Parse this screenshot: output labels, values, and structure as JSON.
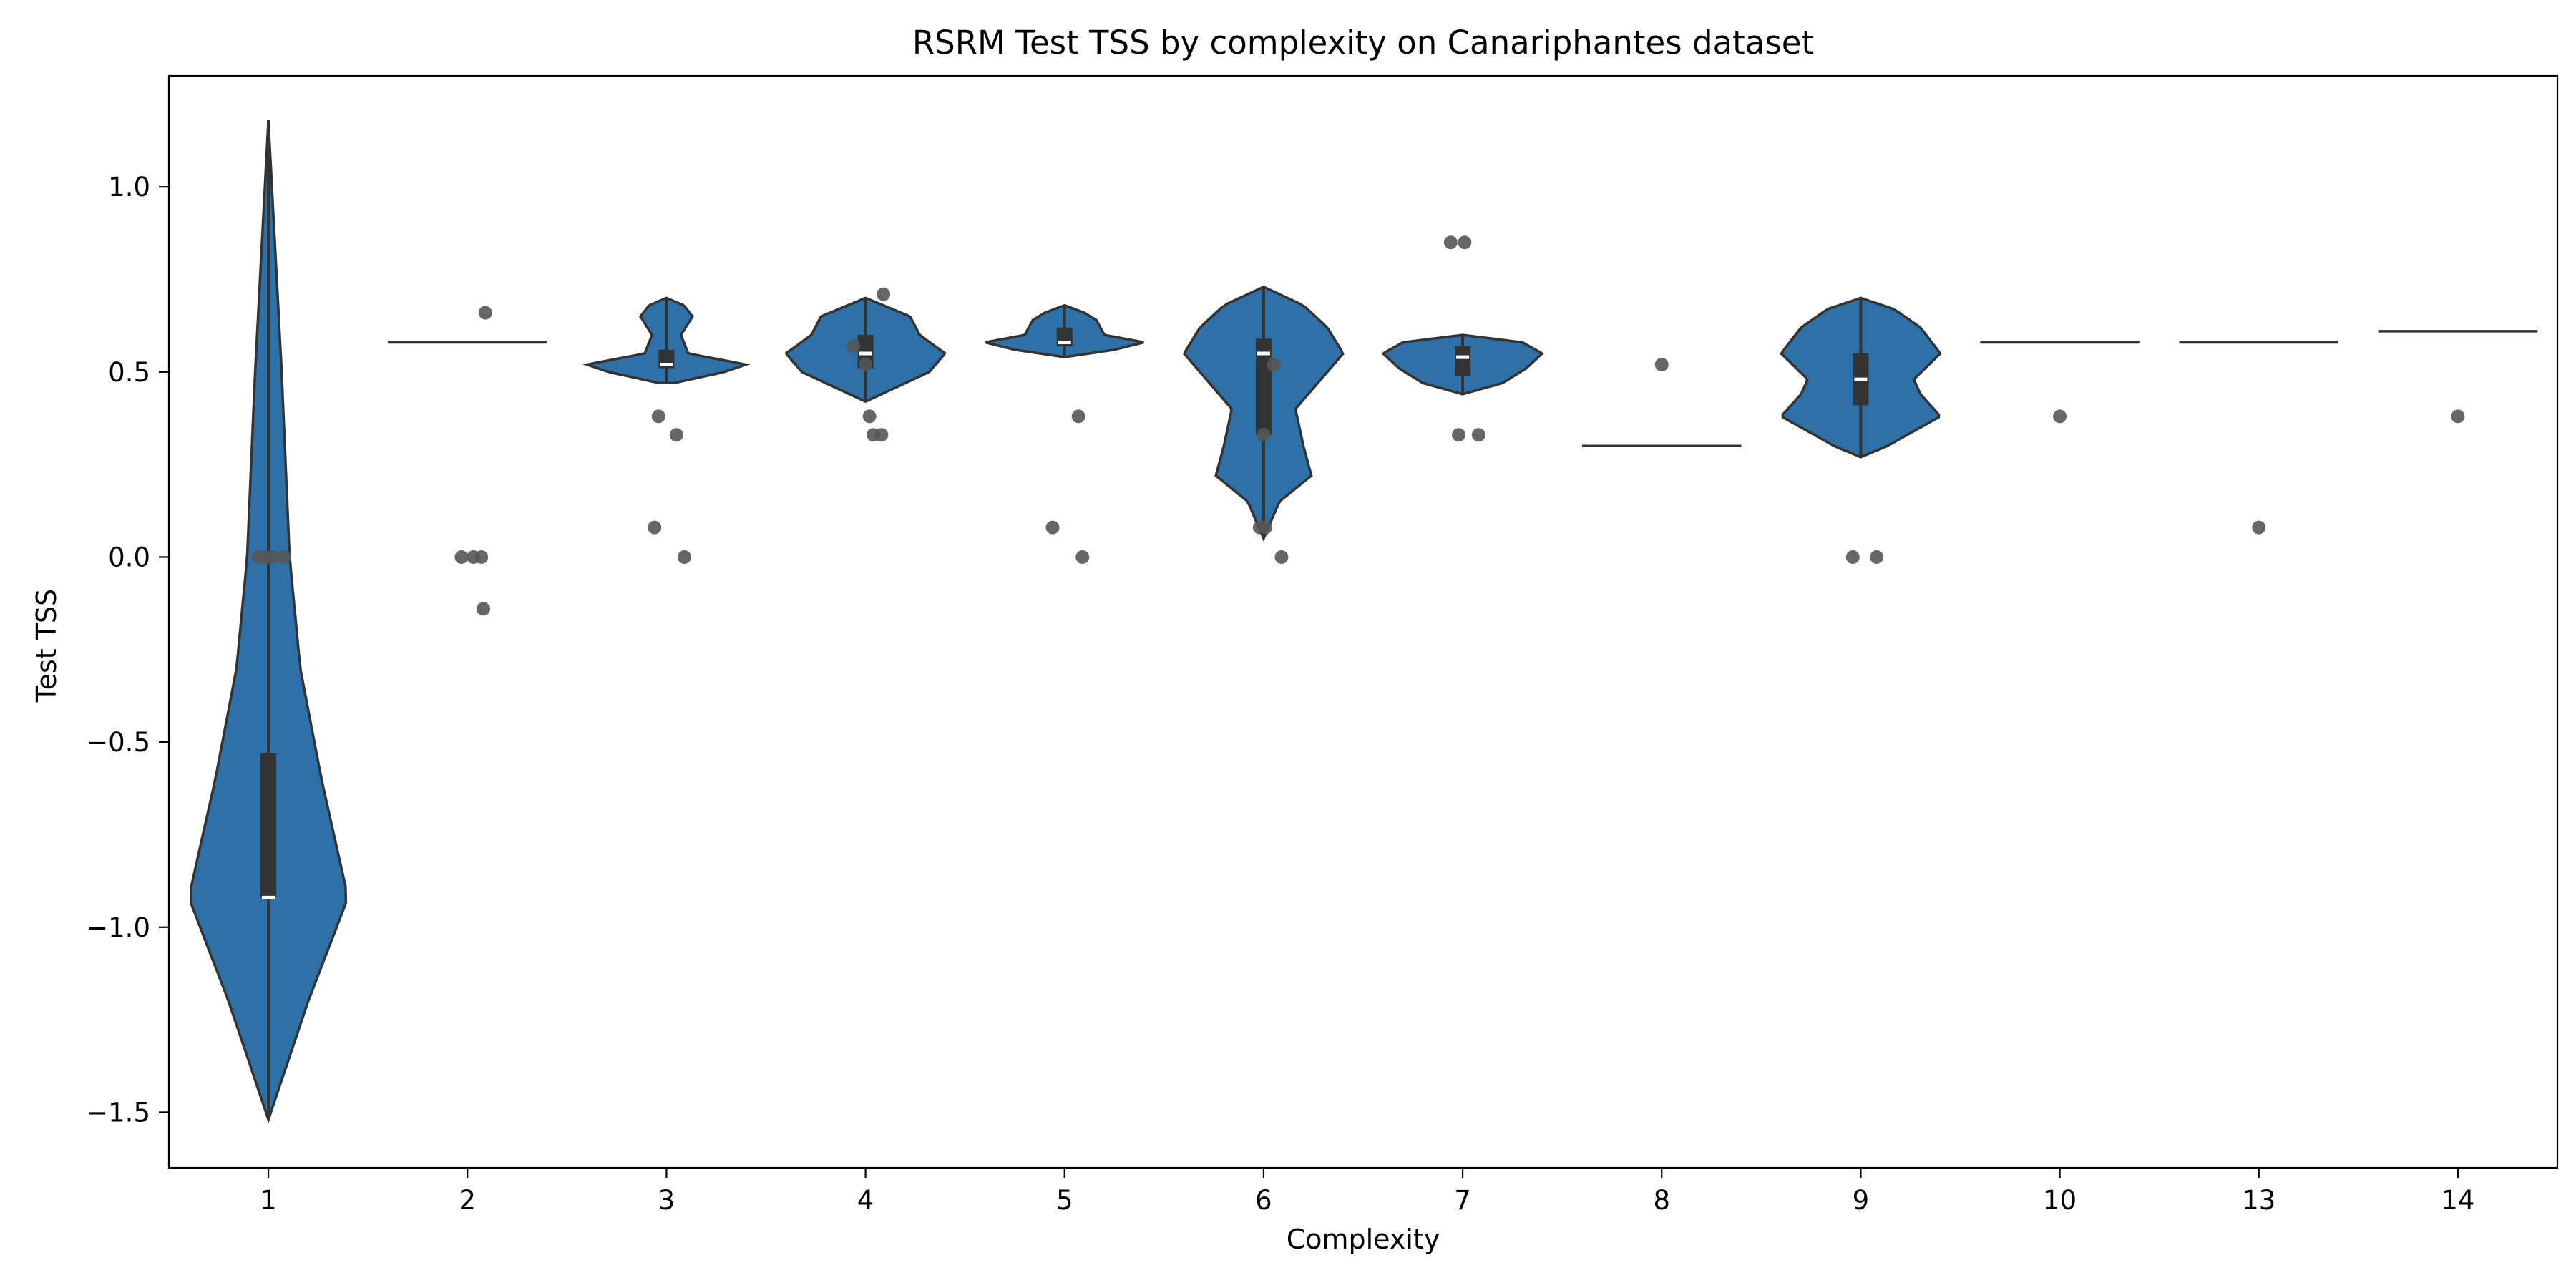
{
  "chart_data": {
    "type": "violin",
    "title": "RSRM Test TSS by complexity on Canariphantes dataset",
    "xlabel": "Complexity",
    "ylabel": "Test TSS",
    "ylim": [
      -1.65,
      1.3
    ],
    "yticks": [
      1.0,
      0.5,
      0.0,
      -0.5,
      -1.0,
      -1.5
    ],
    "ytick_labels": [
      "1.0",
      "0.5",
      "0.0",
      "−0.5",
      "−1.0",
      "−1.5"
    ],
    "categories": [
      "1",
      "2",
      "3",
      "4",
      "5",
      "6",
      "7",
      "8",
      "9",
      "10",
      "13",
      "14"
    ],
    "grid": false,
    "legend": "none",
    "colors": {
      "violin_fill": "#2e70a8",
      "violin_edge": "#333333",
      "point": "#555555",
      "box": "#333333",
      "median": "#ffffff"
    },
    "violins": [
      {
        "category": "1",
        "shape": "violin",
        "y_min": -1.52,
        "y_max": 1.18,
        "q1": -0.92,
        "q3": -0.53,
        "median": -0.92,
        "profile": [
          [
            -1.52,
            0.0
          ],
          [
            -1.2,
            0.015
          ],
          [
            -0.92,
            0.03
          ],
          [
            -0.6,
            0.02
          ],
          [
            -0.3,
            0.012
          ],
          [
            0.0,
            0.008
          ],
          [
            0.5,
            0.005
          ],
          [
            1.18,
            0.0
          ]
        ]
      },
      {
        "category": "2",
        "shape": "flat",
        "value": 0.58
      },
      {
        "category": "3",
        "shape": "violin",
        "y_min": 0.47,
        "y_max": 0.7,
        "q1": 0.51,
        "q3": 0.56,
        "median": 0.52,
        "profile": [
          [
            0.47,
            0.05
          ],
          [
            0.5,
            0.4
          ],
          [
            0.52,
            0.55
          ],
          [
            0.55,
            0.15
          ],
          [
            0.6,
            0.1
          ],
          [
            0.65,
            0.18
          ],
          [
            0.68,
            0.12
          ],
          [
            0.7,
            0.0
          ]
        ]
      },
      {
        "category": "4",
        "shape": "violin",
        "y_min": 0.42,
        "y_max": 0.7,
        "q1": 0.51,
        "q3": 0.6,
        "median": 0.55,
        "profile": [
          [
            0.42,
            0.0
          ],
          [
            0.46,
            0.1
          ],
          [
            0.5,
            0.2
          ],
          [
            0.55,
            0.25
          ],
          [
            0.6,
            0.17
          ],
          [
            0.65,
            0.14
          ],
          [
            0.7,
            0.0
          ]
        ]
      },
      {
        "category": "5",
        "shape": "violin",
        "y_min": 0.54,
        "y_max": 0.68,
        "q1": 0.57,
        "q3": 0.62,
        "median": 0.58,
        "profile": [
          [
            0.54,
            0.0
          ],
          [
            0.56,
            0.25
          ],
          [
            0.58,
            0.4
          ],
          [
            0.6,
            0.2
          ],
          [
            0.64,
            0.16
          ],
          [
            0.66,
            0.1
          ],
          [
            0.68,
            0.0
          ]
        ]
      },
      {
        "category": "6",
        "shape": "violin",
        "y_min": 0.05,
        "y_max": 0.73,
        "q1": 0.33,
        "q3": 0.59,
        "median": 0.55,
        "profile": [
          [
            0.05,
            0.0
          ],
          [
            0.15,
            0.02
          ],
          [
            0.22,
            0.06
          ],
          [
            0.3,
            0.05
          ],
          [
            0.4,
            0.04
          ],
          [
            0.5,
            0.08
          ],
          [
            0.55,
            0.1
          ],
          [
            0.62,
            0.08
          ],
          [
            0.68,
            0.05
          ],
          [
            0.73,
            0.0
          ]
        ]
      },
      {
        "category": "7",
        "shape": "violin",
        "y_min": 0.44,
        "y_max": 0.6,
        "q1": 0.49,
        "q3": 0.57,
        "median": 0.54,
        "profile": [
          [
            0.44,
            0.0
          ],
          [
            0.47,
            0.2
          ],
          [
            0.51,
            0.32
          ],
          [
            0.55,
            0.4
          ],
          [
            0.58,
            0.3
          ],
          [
            0.6,
            0.0
          ]
        ]
      },
      {
        "category": "8",
        "shape": "flat",
        "value": 0.3
      },
      {
        "category": "9",
        "shape": "violin",
        "y_min": 0.27,
        "y_max": 0.7,
        "q1": 0.41,
        "q3": 0.55,
        "median": 0.48,
        "profile": [
          [
            0.27,
            0.0
          ],
          [
            0.3,
            0.04
          ],
          [
            0.38,
            0.12
          ],
          [
            0.44,
            0.09
          ],
          [
            0.48,
            0.08
          ],
          [
            0.55,
            0.12
          ],
          [
            0.62,
            0.09
          ],
          [
            0.67,
            0.05
          ],
          [
            0.7,
            0.0
          ]
        ]
      },
      {
        "category": "10",
        "shape": "flat",
        "value": 0.58
      },
      {
        "category": "13",
        "shape": "flat",
        "value": 0.58
      },
      {
        "category": "14",
        "shape": "flat",
        "value": 0.61
      }
    ],
    "points": [
      {
        "category": "1",
        "y": 0.0,
        "jitter": -0.05
      },
      {
        "category": "1",
        "y": 0.0,
        "jitter": -0.01
      },
      {
        "category": "1",
        "y": 0.0,
        "jitter": 0.02
      },
      {
        "category": "1",
        "y": 0.0,
        "jitter": 0.08
      },
      {
        "category": "2",
        "y": 0.66,
        "jitter": 0.09
      },
      {
        "category": "2",
        "y": 0.0,
        "jitter": -0.03
      },
      {
        "category": "2",
        "y": 0.0,
        "jitter": 0.03
      },
      {
        "category": "2",
        "y": 0.0,
        "jitter": 0.07
      },
      {
        "category": "2",
        "y": -0.14,
        "jitter": 0.08
      },
      {
        "category": "3",
        "y": 0.38,
        "jitter": -0.04
      },
      {
        "category": "3",
        "y": 0.33,
        "jitter": 0.05
      },
      {
        "category": "3",
        "y": 0.08,
        "jitter": -0.06
      },
      {
        "category": "3",
        "y": 0.0,
        "jitter": 0.09
      },
      {
        "category": "4",
        "y": 0.71,
        "jitter": 0.09
      },
      {
        "category": "4",
        "y": 0.57,
        "jitter": -0.06
      },
      {
        "category": "4",
        "y": 0.52,
        "jitter": 0.0
      },
      {
        "category": "4",
        "y": 0.38,
        "jitter": 0.02
      },
      {
        "category": "4",
        "y": 0.33,
        "jitter": 0.04
      },
      {
        "category": "4",
        "y": 0.33,
        "jitter": 0.08
      },
      {
        "category": "5",
        "y": 0.38,
        "jitter": 0.07
      },
      {
        "category": "5",
        "y": 0.08,
        "jitter": -0.06
      },
      {
        "category": "5",
        "y": 0.0,
        "jitter": 0.09
      },
      {
        "category": "6",
        "y": 0.52,
        "jitter": 0.05
      },
      {
        "category": "6",
        "y": 0.33,
        "jitter": 0.0
      },
      {
        "category": "6",
        "y": 0.08,
        "jitter": -0.02
      },
      {
        "category": "6",
        "y": 0.08,
        "jitter": 0.01
      },
      {
        "category": "6",
        "y": 0.0,
        "jitter": 0.09
      },
      {
        "category": "7",
        "y": 0.85,
        "jitter": -0.06
      },
      {
        "category": "7",
        "y": 0.85,
        "jitter": 0.01
      },
      {
        "category": "7",
        "y": 0.33,
        "jitter": -0.02
      },
      {
        "category": "7",
        "y": 0.33,
        "jitter": 0.08
      },
      {
        "category": "8",
        "y": 0.52,
        "jitter": 0.0
      },
      {
        "category": "9",
        "y": 0.0,
        "jitter": -0.04
      },
      {
        "category": "9",
        "y": 0.0,
        "jitter": 0.08
      },
      {
        "category": "10",
        "y": 0.38,
        "jitter": 0.0
      },
      {
        "category": "13",
        "y": 0.08,
        "jitter": 0.0
      },
      {
        "category": "14",
        "y": 0.38,
        "jitter": 0.0
      }
    ]
  }
}
